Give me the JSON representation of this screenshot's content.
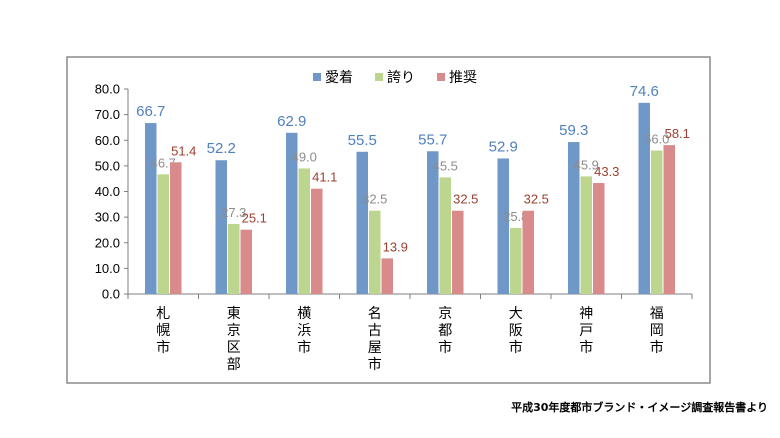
{
  "chart_data": {
    "type": "bar",
    "categories": [
      "札幌市",
      "東京区部",
      "横浜市",
      "名古屋市",
      "京都市",
      "大阪市",
      "神戸市",
      "福岡市"
    ],
    "series": [
      {
        "name": "愛着",
        "color": "#6f97c8",
        "label_color": "#4f81bd",
        "values": [
          66.7,
          52.2,
          62.9,
          55.5,
          55.7,
          52.9,
          59.3,
          74.6
        ]
      },
      {
        "name": "誇り",
        "color": "#bcd58f",
        "label_color": "#8c8c8c",
        "values": [
          46.7,
          27.3,
          49.0,
          32.5,
          45.5,
          25.8,
          45.9,
          56.0
        ]
      },
      {
        "name": "推奨",
        "color": "#d98a8a",
        "label_color": "#9b3f2f",
        "values": [
          51.4,
          25.1,
          41.1,
          13.9,
          32.5,
          32.5,
          43.3,
          58.1
        ]
      }
    ],
    "y_ticks": [
      "0.0",
      "10.0",
      "20.0",
      "30.0",
      "40.0",
      "50.0",
      "60.0",
      "70.0",
      "80.0"
    ],
    "ylim": [
      0,
      80
    ],
    "legend_position": "top",
    "grid": false
  },
  "source_note": "平成30年度都市ブランド・イメージ調査報告書より"
}
